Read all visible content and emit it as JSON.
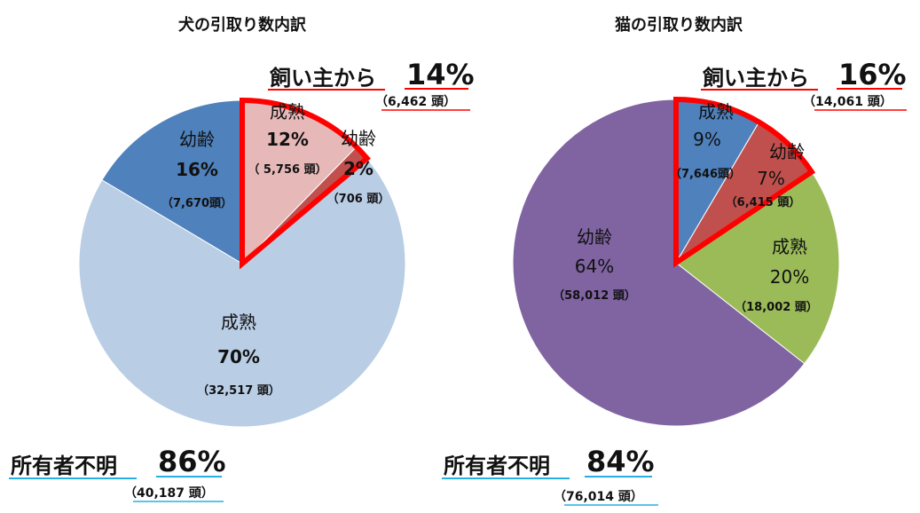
{
  "colors": {
    "highlight": "#ff0000",
    "underline_unknown": "#27b0e6",
    "dog_young": "#4f81bd",
    "dog_adult": "#b9cde5",
    "dog_owner_adult": "#e6b9b8",
    "dog_owner_young": "#c0504d",
    "cat_owner_adult": "#4f81bd",
    "cat_owner_young": "#c0504d",
    "cat_adult": "#9bbb59",
    "cat_young": "#8064a2"
  },
  "chart_data": [
    {
      "type": "pie",
      "title": "犬の引取り数内訳",
      "owner_group": {
        "label": "飼い主から",
        "pct": "14%",
        "count": "（6,462 頭）"
      },
      "unknown_group": {
        "label": "所有者不明",
        "pct": "86%",
        "count": "（40,187 頭）"
      },
      "slices": [
        {
          "name": "成熟",
          "pct_label": "12%",
          "count_label": "（ 5,756 頭）",
          "value": 5756,
          "group": "owner"
        },
        {
          "name": "幼齢",
          "pct_label": "2%",
          "count_label": "（706 頭）",
          "value": 706,
          "group": "owner"
        },
        {
          "name": "成熟",
          "pct_label": "70%",
          "count_label": "（32,517 頭）",
          "value": 32517,
          "group": "unknown"
        },
        {
          "name": "幼齢",
          "pct_label": "16%",
          "count_label": "（7,670頭）",
          "value": 7670,
          "group": "unknown"
        }
      ]
    },
    {
      "type": "pie",
      "title": "猫の引取り数内訳",
      "owner_group": {
        "label": "飼い主から",
        "pct": "16%",
        "count": "（14,061 頭）"
      },
      "unknown_group": {
        "label": "所有者不明",
        "pct": "84%",
        "count": "（76,014 頭）"
      },
      "slices": [
        {
          "name": "成熟",
          "pct_label": "9%",
          "count_label": "（7,646頭）",
          "value": 7646,
          "group": "owner"
        },
        {
          "name": "幼齢",
          "pct_label": "7%",
          "count_label": "（6,415 頭）",
          "value": 6415,
          "group": "owner"
        },
        {
          "name": "成熟",
          "pct_label": "20%",
          "count_label": "（18,002 頭）",
          "value": 18002,
          "group": "unknown"
        },
        {
          "name": "幼齢",
          "pct_label": "64%",
          "count_label": "（58,012 頭）",
          "value": 58012,
          "group": "unknown"
        }
      ]
    }
  ]
}
